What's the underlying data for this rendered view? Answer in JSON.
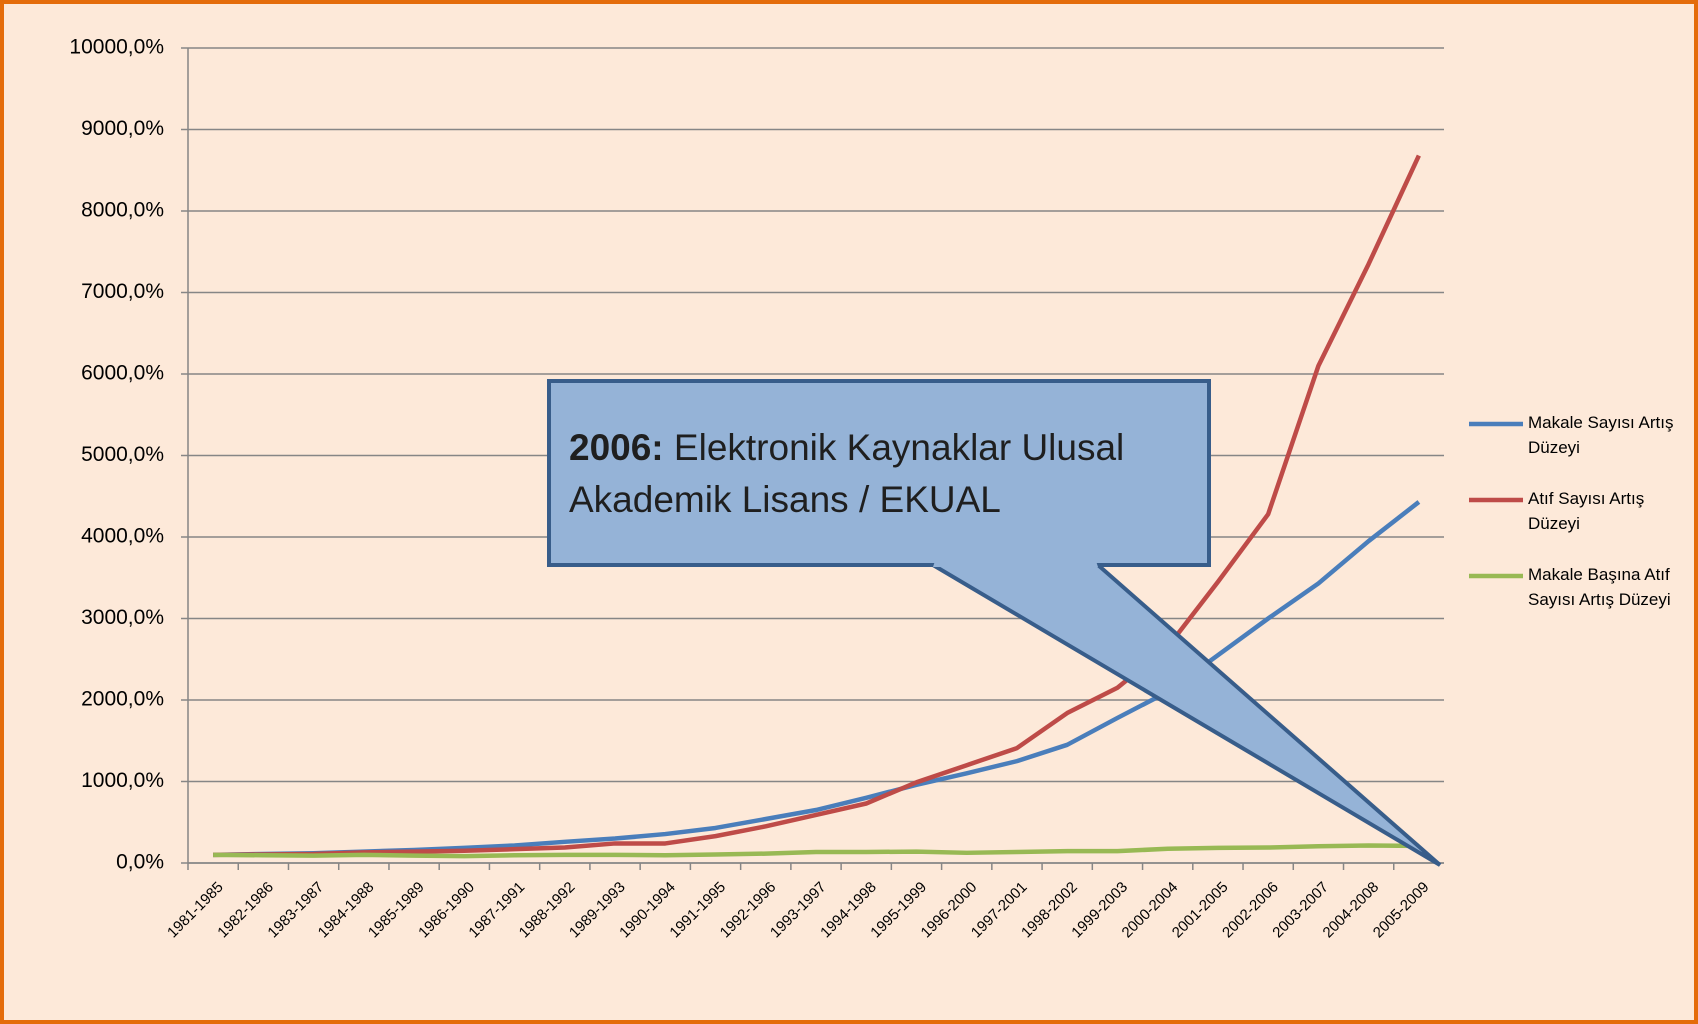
{
  "chart_data": {
    "type": "line",
    "categories": [
      "1981-1985",
      "1982-1986",
      "1983-1987",
      "1984-1988",
      "1985-1989",
      "1986-1990",
      "1987-1991",
      "1988-1992",
      "1989-1993",
      "1990-1994",
      "1991-1995",
      "1992-1996",
      "1993-1997",
      "1994-1998",
      "1995-1999",
      "1996-2000",
      "1997-2001",
      "1998-2002",
      "1999-2003",
      "2000-2004",
      "2001-2005",
      "2002-2006",
      "2003-2007",
      "2004-2008",
      "2005-2009"
    ],
    "series": [
      {
        "name": "Makale Sayısı Artış Düzeyi",
        "color": "#4a7ebb",
        "values": [
          100,
          110,
          120,
          140,
          160,
          185,
          215,
          260,
          300,
          355,
          430,
          540,
          650,
          800,
          960,
          1100,
          1250,
          1450,
          1780,
          2100,
          2550,
          3000,
          3430,
          3950,
          4430
        ]
      },
      {
        "name": "Atıf Sayısı Artış Düzeyi",
        "color": "#be4b48",
        "values": [
          100,
          105,
          110,
          130,
          140,
          150,
          170,
          190,
          240,
          240,
          330,
          450,
          590,
          730,
          990,
          1200,
          1410,
          1840,
          2150,
          2650,
          3450,
          4280,
          6100,
          7350,
          8680
        ]
      },
      {
        "name": "Makale Başına Atıf Sayısı Artış Düzeyi",
        "color": "#98b954",
        "values": [
          100,
          95,
          90,
          100,
          90,
          85,
          95,
          100,
          100,
          95,
          105,
          115,
          135,
          135,
          140,
          125,
          135,
          145,
          145,
          175,
          185,
          190,
          205,
          215,
          210
        ]
      }
    ],
    "ylim": [
      0,
      10000
    ],
    "yticks": [
      {
        "value": 0,
        "label": "0,0%"
      },
      {
        "value": 1000,
        "label": "1000,0%"
      },
      {
        "value": 2000,
        "label": "2000,0%"
      },
      {
        "value": 3000,
        "label": "3000,0%"
      },
      {
        "value": 4000,
        "label": "4000,0%"
      },
      {
        "value": 5000,
        "label": "5000,0%"
      },
      {
        "value": 6000,
        "label": "6000,0%"
      },
      {
        "value": 7000,
        "label": "7000,0%"
      },
      {
        "value": 8000,
        "label": "8000,0%"
      },
      {
        "value": 9000,
        "label": "9000,0%"
      },
      {
        "value": 10000,
        "label": "10000,0%"
      }
    ],
    "grid": true,
    "legend": "right",
    "annotation": {
      "bold": "2006:",
      "text": "Elektronik Kaynaklar Ulusal Akademik Lisans / EKUAL"
    }
  }
}
